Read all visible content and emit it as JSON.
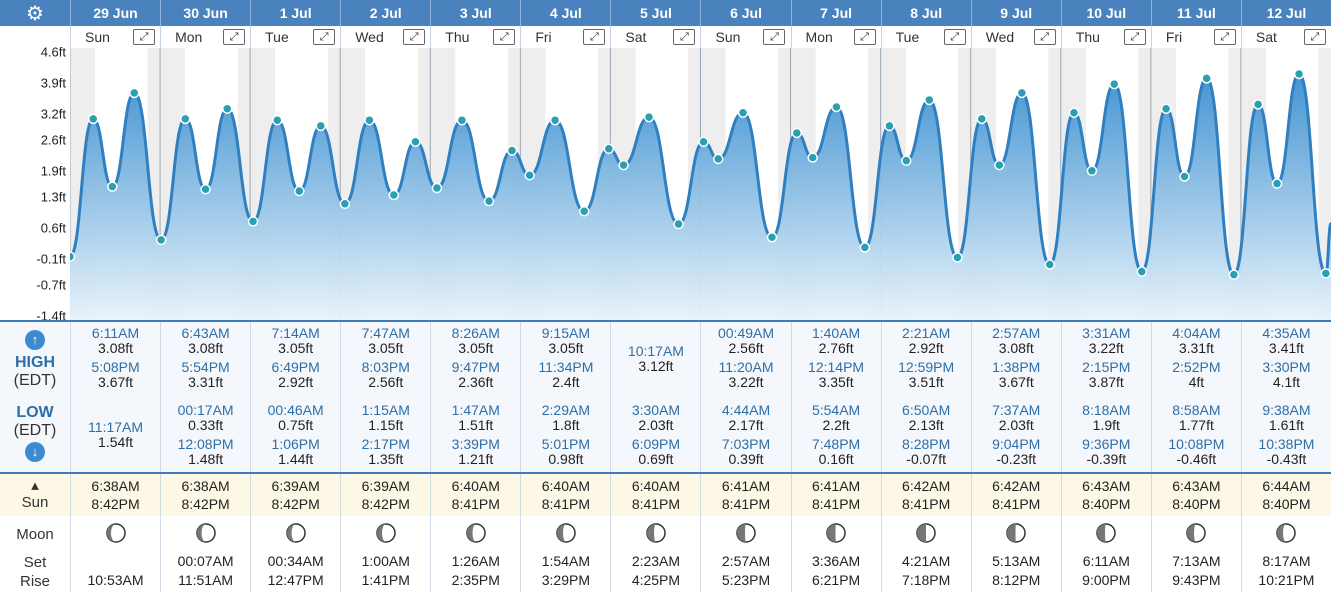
{
  "days": [
    {
      "date": "29 Jun",
      "dow": "Sun",
      "highs": [
        {
          "time": "6:11AM",
          "height": "3.08ft"
        },
        {
          "time": "5:08PM",
          "height": "3.67ft"
        }
      ],
      "lows": [
        {
          "time": "11:17AM",
          "height": "1.54ft"
        }
      ],
      "sunrise": "6:38AM",
      "sunset": "8:42PM",
      "moonset": "",
      "moonrise": "10:53AM"
    },
    {
      "date": "30 Jun",
      "dow": "Mon",
      "highs": [
        {
          "time": "6:43AM",
          "height": "3.08ft"
        },
        {
          "time": "5:54PM",
          "height": "3.31ft"
        }
      ],
      "lows": [
        {
          "time": "00:17AM",
          "height": "0.33ft"
        },
        {
          "time": "12:08PM",
          "height": "1.48ft"
        }
      ],
      "sunrise": "6:38AM",
      "sunset": "8:42PM",
      "moonset": "00:07AM",
      "moonrise": "11:51AM"
    },
    {
      "date": "1 Jul",
      "dow": "Tue",
      "highs": [
        {
          "time": "7:14AM",
          "height": "3.05ft"
        },
        {
          "time": "6:49PM",
          "height": "2.92ft"
        }
      ],
      "lows": [
        {
          "time": "00:46AM",
          "height": "0.75ft"
        },
        {
          "time": "1:06PM",
          "height": "1.44ft"
        }
      ],
      "sunrise": "6:39AM",
      "sunset": "8:42PM",
      "moonset": "00:34AM",
      "moonrise": "12:47PM"
    },
    {
      "date": "2 Jul",
      "dow": "Wed",
      "highs": [
        {
          "time": "7:47AM",
          "height": "3.05ft"
        },
        {
          "time": "8:03PM",
          "height": "2.56ft"
        }
      ],
      "lows": [
        {
          "time": "1:15AM",
          "height": "1.15ft"
        },
        {
          "time": "2:17PM",
          "height": "1.35ft"
        }
      ],
      "sunrise": "6:39AM",
      "sunset": "8:42PM",
      "moonset": "1:00AM",
      "moonrise": "1:41PM"
    },
    {
      "date": "3 Jul",
      "dow": "Thu",
      "highs": [
        {
          "time": "8:26AM",
          "height": "3.05ft"
        },
        {
          "time": "9:47PM",
          "height": "2.36ft"
        }
      ],
      "lows": [
        {
          "time": "1:47AM",
          "height": "1.51ft"
        },
        {
          "time": "3:39PM",
          "height": "1.21ft"
        }
      ],
      "sunrise": "6:40AM",
      "sunset": "8:41PM",
      "moonset": "1:26AM",
      "moonrise": "2:35PM"
    },
    {
      "date": "4 Jul",
      "dow": "Fri",
      "highs": [
        {
          "time": "9:15AM",
          "height": "3.05ft"
        },
        {
          "time": "11:34PM",
          "height": "2.4ft"
        }
      ],
      "lows": [
        {
          "time": "2:29AM",
          "height": "1.8ft"
        },
        {
          "time": "5:01PM",
          "height": "0.98ft"
        }
      ],
      "sunrise": "6:40AM",
      "sunset": "8:41PM",
      "moonset": "1:54AM",
      "moonrise": "3:29PM"
    },
    {
      "date": "5 Jul",
      "dow": "Sat",
      "highs": [
        {
          "time": "10:17AM",
          "height": "3.12ft"
        }
      ],
      "lows": [
        {
          "time": "3:30AM",
          "height": "2.03ft"
        },
        {
          "time": "6:09PM",
          "height": "0.69ft"
        }
      ],
      "sunrise": "6:40AM",
      "sunset": "8:41PM",
      "moonset": "2:23AM",
      "moonrise": "4:25PM"
    },
    {
      "date": "6 Jul",
      "dow": "Sun",
      "highs": [
        {
          "time": "00:49AM",
          "height": "2.56ft"
        },
        {
          "time": "11:20AM",
          "height": "3.22ft"
        }
      ],
      "lows": [
        {
          "time": "4:44AM",
          "height": "2.17ft"
        },
        {
          "time": "7:03PM",
          "height": "0.39ft"
        }
      ],
      "sunrise": "6:41AM",
      "sunset": "8:41PM",
      "moonset": "2:57AM",
      "moonrise": "5:23PM"
    },
    {
      "date": "7 Jul",
      "dow": "Mon",
      "highs": [
        {
          "time": "1:40AM",
          "height": "2.76ft"
        },
        {
          "time": "12:14PM",
          "height": "3.35ft"
        }
      ],
      "lows": [
        {
          "time": "5:54AM",
          "height": "2.2ft"
        },
        {
          "time": "7:48PM",
          "height": "0.16ft"
        }
      ],
      "sunrise": "6:41AM",
      "sunset": "8:41PM",
      "moonset": "3:36AM",
      "moonrise": "6:21PM"
    },
    {
      "date": "8 Jul",
      "dow": "Tue",
      "highs": [
        {
          "time": "2:21AM",
          "height": "2.92ft"
        },
        {
          "time": "12:59PM",
          "height": "3.51ft"
        }
      ],
      "lows": [
        {
          "time": "6:50AM",
          "height": "2.13ft"
        },
        {
          "time": "8:28PM",
          "height": "-0.07ft"
        }
      ],
      "sunrise": "6:42AM",
      "sunset": "8:41PM",
      "moonset": "4:21AM",
      "moonrise": "7:18PM"
    },
    {
      "date": "9 Jul",
      "dow": "Wed",
      "highs": [
        {
          "time": "2:57AM",
          "height": "3.08ft"
        },
        {
          "time": "1:38PM",
          "height": "3.67ft"
        }
      ],
      "lows": [
        {
          "time": "7:37AM",
          "height": "2.03ft"
        },
        {
          "time": "9:04PM",
          "height": "-0.23ft"
        }
      ],
      "sunrise": "6:42AM",
      "sunset": "8:41PM",
      "moonset": "5:13AM",
      "moonrise": "8:12PM"
    },
    {
      "date": "10 Jul",
      "dow": "Thu",
      "highs": [
        {
          "time": "3:31AM",
          "height": "3.22ft"
        },
        {
          "time": "2:15PM",
          "height": "3.87ft"
        }
      ],
      "lows": [
        {
          "time": "8:18AM",
          "height": "1.9ft"
        },
        {
          "time": "9:36PM",
          "height": "-0.39ft"
        }
      ],
      "sunrise": "6:43AM",
      "sunset": "8:40PM",
      "moonset": "6:11AM",
      "moonrise": "9:00PM"
    },
    {
      "date": "11 Jul",
      "dow": "Fri",
      "highs": [
        {
          "time": "4:04AM",
          "height": "3.31ft"
        },
        {
          "time": "2:52PM",
          "height": "4ft"
        }
      ],
      "lows": [
        {
          "time": "8:58AM",
          "height": "1.77ft"
        },
        {
          "time": "10:08PM",
          "height": "-0.46ft"
        }
      ],
      "sunrise": "6:43AM",
      "sunset": "8:40PM",
      "moonset": "7:13AM",
      "moonrise": "9:43PM"
    },
    {
      "date": "12 Jul",
      "dow": "Sat",
      "highs": [
        {
          "time": "4:35AM",
          "height": "3.41ft"
        },
        {
          "time": "3:30PM",
          "height": "4.1ft"
        }
      ],
      "lows": [
        {
          "time": "9:38AM",
          "height": "1.61ft"
        },
        {
          "time": "10:38PM",
          "height": "-0.43ft"
        }
      ],
      "sunrise": "6:44AM",
      "sunset": "8:40PM",
      "moonset": "8:17AM",
      "moonrise": "10:21PM"
    }
  ],
  "labels": {
    "high": "HIGH",
    "low": "LOW",
    "tz": "(EDT)",
    "sun": "Sun",
    "moon": "Moon",
    "set": "Set",
    "rise": "Rise"
  },
  "icons": {
    "settings": "gear-icon",
    "expand": "expand-icon",
    "up": "arrow-up-icon",
    "down": "arrow-down-icon",
    "sun": "sun-updown-icon",
    "moon": "moon-phase-icon"
  },
  "colors": {
    "header": "#4a82bd",
    "line": "#2f7fc1",
    "fill_top": "#3a8fd0",
    "fill_bottom": "#e8f3fb",
    "accent": "#2e6ea6"
  },
  "moon_phase": [
    0.5,
    0.45,
    0.45,
    0.4,
    0.35,
    0.28,
    0.2,
    0.12,
    0.05,
    0.0,
    0.05,
    0.12,
    0.2,
    0.28
  ],
  "chart_data": {
    "type": "area",
    "y_ticks": [
      "4.6ft",
      "3.9ft",
      "3.2ft",
      "2.6ft",
      "1.9ft",
      "1.3ft",
      "0.6ft",
      "-0.1ft",
      "-0.7ft",
      "-1.4ft"
    ],
    "ylim": [
      -1.4,
      4.6
    ],
    "series": [
      {
        "values": [
          {
            "day": 0,
            "hour": 0,
            "ft": -0.05
          },
          {
            "day": 0,
            "hour": 6.18,
            "ft": 3.08
          },
          {
            "day": 0,
            "hour": 11.28,
            "ft": 1.54
          },
          {
            "day": 0,
            "hour": 17.13,
            "ft": 3.67
          },
          {
            "day": 1,
            "hour": 0.28,
            "ft": 0.33
          },
          {
            "day": 1,
            "hour": 6.72,
            "ft": 3.08
          },
          {
            "day": 1,
            "hour": 12.13,
            "ft": 1.48
          },
          {
            "day": 1,
            "hour": 17.9,
            "ft": 3.31
          },
          {
            "day": 2,
            "hour": 0.77,
            "ft": 0.75
          },
          {
            "day": 2,
            "hour": 7.23,
            "ft": 3.05
          },
          {
            "day": 2,
            "hour": 13.1,
            "ft": 1.44
          },
          {
            "day": 2,
            "hour": 18.82,
            "ft": 2.92
          },
          {
            "day": 3,
            "hour": 1.25,
            "ft": 1.15
          },
          {
            "day": 3,
            "hour": 7.78,
            "ft": 3.05
          },
          {
            "day": 3,
            "hour": 14.28,
            "ft": 1.35
          },
          {
            "day": 3,
            "hour": 20.05,
            "ft": 2.56
          },
          {
            "day": 4,
            "hour": 1.78,
            "ft": 1.51
          },
          {
            "day": 4,
            "hour": 8.43,
            "ft": 3.05
          },
          {
            "day": 4,
            "hour": 15.65,
            "ft": 1.21
          },
          {
            "day": 4,
            "hour": 21.78,
            "ft": 2.36
          },
          {
            "day": 5,
            "hour": 2.48,
            "ft": 1.8
          },
          {
            "day": 5,
            "hour": 9.25,
            "ft": 3.05
          },
          {
            "day": 5,
            "hour": 17.02,
            "ft": 0.98
          },
          {
            "day": 5,
            "hour": 23.57,
            "ft": 2.4
          },
          {
            "day": 6,
            "hour": 3.5,
            "ft": 2.03
          },
          {
            "day": 6,
            "hour": 10.28,
            "ft": 3.12
          },
          {
            "day": 6,
            "hour": 18.15,
            "ft": 0.69
          },
          {
            "day": 7,
            "hour": 0.82,
            "ft": 2.56
          },
          {
            "day": 7,
            "hour": 4.73,
            "ft": 2.17
          },
          {
            "day": 7,
            "hour": 11.33,
            "ft": 3.22
          },
          {
            "day": 7,
            "hour": 19.05,
            "ft": 0.39
          },
          {
            "day": 8,
            "hour": 1.67,
            "ft": 2.76
          },
          {
            "day": 8,
            "hour": 5.9,
            "ft": 2.2
          },
          {
            "day": 8,
            "hour": 12.23,
            "ft": 3.35
          },
          {
            "day": 8,
            "hour": 19.8,
            "ft": 0.16
          },
          {
            "day": 9,
            "hour": 2.35,
            "ft": 2.92
          },
          {
            "day": 9,
            "hour": 6.83,
            "ft": 2.13
          },
          {
            "day": 9,
            "hour": 12.98,
            "ft": 3.51
          },
          {
            "day": 9,
            "hour": 20.47,
            "ft": -0.07
          },
          {
            "day": 10,
            "hour": 2.95,
            "ft": 3.08
          },
          {
            "day": 10,
            "hour": 7.62,
            "ft": 2.03
          },
          {
            "day": 10,
            "hour": 13.63,
            "ft": 3.67
          },
          {
            "day": 10,
            "hour": 21.07,
            "ft": -0.23
          },
          {
            "day": 11,
            "hour": 3.52,
            "ft": 3.22
          },
          {
            "day": 11,
            "hour": 8.3,
            "ft": 1.9
          },
          {
            "day": 11,
            "hour": 14.25,
            "ft": 3.87
          },
          {
            "day": 11,
            "hour": 21.6,
            "ft": -0.39
          },
          {
            "day": 12,
            "hour": 4.07,
            "ft": 3.31
          },
          {
            "day": 12,
            "hour": 8.97,
            "ft": 1.77
          },
          {
            "day": 12,
            "hour": 14.87,
            "ft": 4.0
          },
          {
            "day": 12,
            "hour": 22.13,
            "ft": -0.46
          },
          {
            "day": 13,
            "hour": 4.58,
            "ft": 3.41
          },
          {
            "day": 13,
            "hour": 9.63,
            "ft": 1.61
          },
          {
            "day": 13,
            "hour": 15.5,
            "ft": 4.1
          },
          {
            "day": 13,
            "hour": 22.63,
            "ft": -0.43
          }
        ]
      }
    ]
  }
}
